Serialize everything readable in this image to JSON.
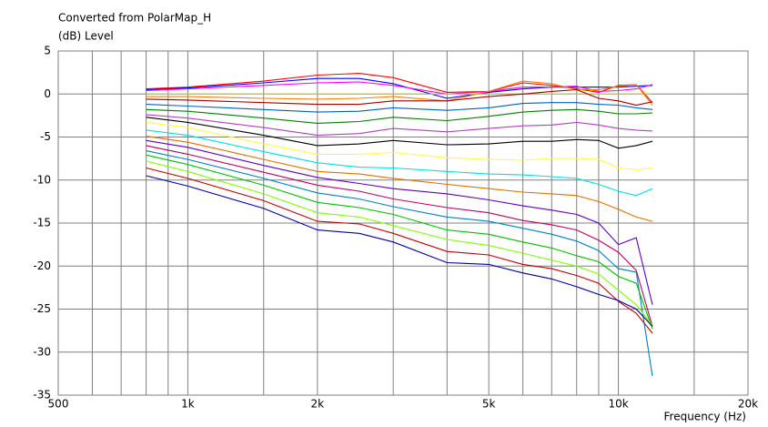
{
  "chart_data": {
    "type": "line",
    "title": "Converted from PolarMap_H",
    "ylabel": "(dB)  Level",
    "xlabel": "Frequency  (Hz)",
    "xscale": "log",
    "xlim": [
      500,
      20000
    ],
    "ylim": [
      -35,
      5
    ],
    "xticks": [
      500,
      {
        "value": 1000,
        "label": "1k"
      },
      {
        "value": 2000,
        "label": "2k"
      },
      {
        "value": 5000,
        "label": "5k"
      },
      {
        "value": 10000,
        "label": "10k"
      },
      {
        "value": 20000,
        "label": "20k"
      }
    ],
    "x_minor_ticks": [
      600,
      700,
      800,
      900,
      1500,
      3000,
      4000,
      6000,
      7000,
      8000,
      9000,
      15000
    ],
    "yticks": [
      5,
      0,
      -5,
      -10,
      -15,
      -20,
      -25,
      -30,
      -35
    ],
    "grid": true,
    "x": [
      800,
      1000,
      1500,
      2000,
      2500,
      3000,
      4000,
      5000,
      6000,
      7000,
      8000,
      9000,
      10000,
      11000,
      12000
    ],
    "series": [
      {
        "color": "#ff0000",
        "values": [
          0.6,
          0.8,
          1.5,
          2.2,
          2.4,
          1.9,
          0.2,
          0.3,
          1.3,
          1.0,
          0.6,
          0.2,
          1.0,
          1.1,
          -1.0
        ]
      },
      {
        "color": "#0000ff",
        "values": [
          0.5,
          0.7,
          1.3,
          1.8,
          1.8,
          1.2,
          -0.5,
          0.2,
          0.6,
          0.8,
          0.8,
          0.8,
          0.8,
          0.9,
          1.0
        ]
      },
      {
        "color": "#ff00ff",
        "values": [
          0.4,
          0.6,
          1.0,
          1.3,
          1.4,
          1.0,
          0.0,
          0.3,
          0.8,
          0.8,
          0.9,
          0.3,
          0.4,
          0.6,
          1.1
        ]
      },
      {
        "color": "#c0d000",
        "values": [
          0,
          0,
          0,
          0,
          0,
          0,
          0,
          0,
          0,
          0,
          0,
          0,
          0,
          0,
          0
        ]
      },
      {
        "color": "#ff8000",
        "values": [
          -0.3,
          -0.3,
          -0.5,
          -0.6,
          -0.5,
          -0.3,
          -0.8,
          0.3,
          1.5,
          1.2,
          0.5,
          0.5,
          0.9,
          1.1,
          -1.3
        ]
      },
      {
        "color": "#a00000",
        "values": [
          -0.6,
          -0.7,
          -1.0,
          -1.2,
          -1.2,
          -0.8,
          -0.8,
          -0.3,
          0.0,
          0.3,
          0.5,
          -0.5,
          -0.8,
          -1.3,
          -0.9
        ]
      },
      {
        "color": "#0060c0",
        "values": [
          -1.2,
          -1.4,
          -1.8,
          -2.1,
          -2.0,
          -1.6,
          -1.9,
          -1.6,
          -1.1,
          -1.0,
          -1.0,
          -1.2,
          -1.3,
          -1.6,
          -1.8
        ]
      },
      {
        "color": "#008000",
        "values": [
          -1.8,
          -2.0,
          -2.8,
          -3.4,
          -3.2,
          -2.7,
          -3.1,
          -2.6,
          -2.1,
          -1.9,
          -1.8,
          -2.0,
          -2.3,
          -2.3,
          -2.2
        ]
      },
      {
        "color": "#b040c0",
        "values": [
          -2.4,
          -2.8,
          -3.9,
          -4.8,
          -4.6,
          -4.0,
          -4.4,
          -4.0,
          -3.7,
          -3.6,
          -3.3,
          -3.6,
          -4.0,
          -4.2,
          -4.3
        ]
      },
      {
        "color": "#000000",
        "values": [
          -2.7,
          -3.3,
          -4.8,
          -6.0,
          -5.8,
          -5.4,
          -5.9,
          -5.8,
          -5.5,
          -5.5,
          -5.3,
          -5.4,
          -6.3,
          -6.0,
          -5.5
        ]
      },
      {
        "color": "#ffff40",
        "values": [
          -3.3,
          -3.9,
          -5.8,
          -7.0,
          -7.0,
          -6.8,
          -7.4,
          -7.6,
          -7.7,
          -7.5,
          -7.5,
          -7.6,
          -8.6,
          -8.8,
          -8.6
        ]
      },
      {
        "color": "#00e0e0",
        "values": [
          -4.2,
          -4.8,
          -6.7,
          -8.0,
          -8.5,
          -8.6,
          -9.0,
          -9.3,
          -9.4,
          -9.6,
          -9.8,
          -10.5,
          -11.3,
          -11.8,
          -11.0
        ]
      },
      {
        "color": "#e07000",
        "values": [
          -4.9,
          -5.6,
          -7.6,
          -9.0,
          -9.3,
          -9.8,
          -10.5,
          -11.0,
          -11.4,
          -11.6,
          -11.8,
          -12.5,
          -13.4,
          -14.3,
          -14.8
        ]
      },
      {
        "color": "#6000c0",
        "values": [
          -5.4,
          -6.2,
          -8.3,
          -9.7,
          -10.4,
          -11.0,
          -11.6,
          -12.3,
          -13.0,
          -13.5,
          -14.0,
          -15.0,
          -17.5,
          -16.7,
          -24.5
        ]
      },
      {
        "color": "#c00060",
        "values": [
          -6.0,
          -7.0,
          -9.1,
          -10.6,
          -11.3,
          -12.2,
          -13.2,
          -13.8,
          -14.7,
          -15.2,
          -15.8,
          -17.0,
          -18.4,
          -20.5,
          -27.0
        ]
      },
      {
        "color": "#0080c0",
        "values": [
          -6.6,
          -7.6,
          -9.8,
          -11.5,
          -12.2,
          -13.1,
          -14.3,
          -14.8,
          -15.6,
          -16.3,
          -17.1,
          -18.2,
          -20.3,
          -20.7,
          -32.8
        ]
      },
      {
        "color": "#00c000",
        "values": [
          -7.1,
          -8.2,
          -10.6,
          -12.6,
          -13.2,
          -14.0,
          -15.8,
          -16.3,
          -17.2,
          -17.9,
          -18.8,
          -19.5,
          -21.2,
          -22.0,
          -27.3
        ]
      },
      {
        "color": "#80ff00",
        "values": [
          -7.8,
          -9.0,
          -11.6,
          -13.8,
          -14.3,
          -15.3,
          -16.9,
          -17.6,
          -18.5,
          -19.3,
          -20.0,
          -20.9,
          -22.8,
          -24.5,
          -26.9
        ]
      },
      {
        "color": "#c00000",
        "values": [
          -8.6,
          -9.8,
          -12.4,
          -14.8,
          -15.1,
          -16.2,
          -18.3,
          -18.7,
          -19.8,
          -20.3,
          -21.1,
          -22.0,
          -24.1,
          -25.5,
          -27.8
        ]
      },
      {
        "color": "#0000a0",
        "values": [
          -9.5,
          -10.7,
          -13.3,
          -15.8,
          -16.2,
          -17.2,
          -19.6,
          -19.8,
          -20.8,
          -21.5,
          -22.4,
          -23.3,
          -24.0,
          -25.0,
          -27.0
        ]
      }
    ]
  }
}
